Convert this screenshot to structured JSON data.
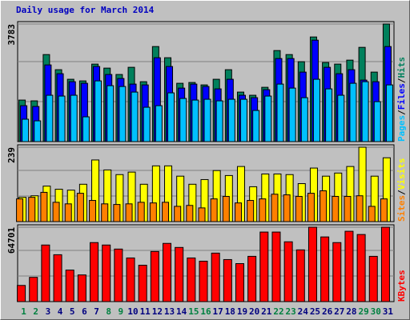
{
  "chart_data": [
    {
      "type": "bar",
      "title": "Daily usage for March 2014",
      "ylim": [
        0,
        3783
      ],
      "yticks": [
        3783
      ],
      "legend_separator": "/",
      "series": [
        {
          "name": "Pages",
          "color": "#00c0ff",
          "values": [
            720,
            668,
            1491,
            1465,
            1491,
            797,
            1953,
            1799,
            1773,
            1593,
            1105,
            1156,
            1568,
            1388,
            1336,
            1362,
            1311,
            1362,
            1362,
            1002,
            1465,
            1850,
            1721,
            1413,
            2005,
            1696,
            1491,
            1876,
            1927,
            1285,
            1824
          ]
        },
        {
          "name": "Files",
          "color": "#0000ff",
          "values": [
            1156,
            1130,
            2467,
            2184,
            1927,
            1876,
            2416,
            2159,
            2030,
            1850,
            1824,
            2698,
            2416,
            1721,
            1850,
            1773,
            1696,
            2005,
            1491,
            1413,
            1670,
            2672,
            2672,
            2236,
            3263,
            2390,
            2184,
            2313,
            1979,
            1927,
            3058
          ]
        },
        {
          "name": "Hits",
          "color": "#00805c",
          "values": [
            1336,
            1311,
            2800,
            2313,
            2005,
            1953,
            2493,
            2364,
            2159,
            2390,
            1927,
            3058,
            2698,
            1876,
            1902,
            1824,
            2005,
            2313,
            1593,
            1491,
            1747,
            2929,
            2800,
            2570,
            3366,
            2544,
            2493,
            2621,
            3032,
            2236,
            3783
          ]
        }
      ]
    },
    {
      "type": "bar",
      "ylim": [
        0,
        239
      ],
      "yticks": [
        239
      ],
      "legend_separator": "/",
      "series": [
        {
          "name": "Sites",
          "color": "#ff8000",
          "values": [
            73,
            78,
            94,
            62,
            57,
            91,
            68,
            57,
            55,
            57,
            62,
            60,
            62,
            49,
            52,
            44,
            73,
            81,
            60,
            68,
            73,
            88,
            86,
            81,
            91,
            99,
            81,
            81,
            83,
            49,
            73
          ]
        },
        {
          "name": "Visits",
          "color": "#ffff00",
          "values": [
            78,
            83,
            114,
            104,
            101,
            120,
            198,
            166,
            151,
            159,
            120,
            179,
            179,
            146,
            120,
            135,
            164,
            148,
            177,
            112,
            153,
            153,
            151,
            122,
            172,
            146,
            156,
            177,
            239,
            146,
            205
          ]
        }
      ]
    },
    {
      "type": "bar",
      "ylim": [
        0,
        64701
      ],
      "yticks": [
        64701
      ],
      "categories": [
        "1",
        "2",
        "3",
        "4",
        "5",
        "6",
        "7",
        "8",
        "9",
        "10",
        "11",
        "12",
        "13",
        "14",
        "15",
        "16",
        "17",
        "18",
        "19",
        "20",
        "21",
        "22",
        "23",
        "24",
        "25",
        "26",
        "27",
        "28",
        "29",
        "30",
        "31"
      ],
      "category_colors": [
        "#008040",
        "#008040",
        "#000080",
        "#000080",
        "#000080",
        "#000080",
        "#000080",
        "#008040",
        "#008040",
        "#000080",
        "#000080",
        "#000080",
        "#000080",
        "#000080",
        "#008040",
        "#008040",
        "#000080",
        "#000080",
        "#000080",
        "#000080",
        "#000080",
        "#008040",
        "#008040",
        "#000080",
        "#000080",
        "#000080",
        "#000080",
        "#000080",
        "#008040",
        "#008040",
        "#000080"
      ],
      "series": [
        {
          "name": "KBytes",
          "color": "#ff0000",
          "values": [
            14060,
            21090,
            49210,
            40770,
            27420,
            23200,
            51320,
            49210,
            45700,
            37960,
            31640,
            43590,
            50620,
            47100,
            37960,
            35150,
            42180,
            36560,
            33040,
            39370,
            60480,
            60480,
            52020,
            44990,
            64701,
            56240,
            51320,
            61160,
            58350,
            39370,
            64701
          ]
        }
      ]
    }
  ]
}
